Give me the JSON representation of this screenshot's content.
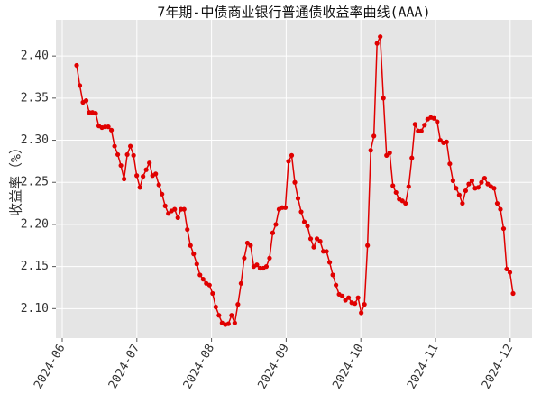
{
  "chart_data": {
    "type": "line",
    "title": "7年期-中债商业银行普通债收益率曲线(AAA)",
    "y_label": "收益率（%）",
    "color": "#e00000",
    "grid": true,
    "ylim": [
      2.065,
      2.443
    ],
    "yticks": [
      {
        "value": 2.1,
        "label": "2.10"
      },
      2.15,
      {
        "value": 2.2,
        "label": "2.20"
      },
      2.25,
      {
        "value": 2.3,
        "label": "2.30"
      },
      2.35,
      {
        "value": 2.4,
        "label": "2.40"
      }
    ],
    "xticks": [
      "2024-06",
      "2024-07",
      "2024-08",
      "2024-09",
      "2024-10",
      "2024-11",
      "2024-12"
    ],
    "values": [
      2.389,
      2.365,
      2.345,
      2.347,
      2.333,
      2.333,
      2.332,
      2.317,
      2.315,
      2.316,
      2.316,
      2.312,
      2.293,
      2.283,
      2.27,
      2.254,
      2.283,
      2.293,
      2.282,
      2.258,
      2.244,
      2.257,
      2.265,
      2.273,
      2.258,
      2.26,
      2.247,
      2.236,
      2.222,
      2.213,
      2.216,
      2.218,
      2.208,
      2.218,
      2.218,
      2.194,
      2.175,
      2.165,
      2.153,
      2.14,
      2.135,
      2.13,
      2.128,
      2.118,
      2.102,
      2.092,
      2.083,
      2.081,
      2.082,
      2.092,
      2.083,
      2.105,
      2.13,
      2.16,
      2.178,
      2.175,
      2.15,
      2.152,
      2.148,
      2.148,
      2.15,
      2.16,
      2.19,
      2.2,
      2.218,
      2.22,
      2.22,
      2.275,
      2.282,
      2.25,
      2.231,
      2.215,
      2.203,
      2.198,
      2.183,
      2.173,
      2.183,
      2.18,
      2.168,
      2.168,
      2.155,
      2.14,
      2.128,
      2.117,
      2.115,
      2.11,
      2.113,
      2.107,
      2.106,
      2.113,
      2.095,
      2.105,
      2.175,
      2.288,
      2.305,
      2.415,
      2.423,
      2.35,
      2.282,
      2.285,
      2.246,
      2.238,
      2.23,
      2.228,
      2.225,
      2.245,
      2.279,
      2.319,
      2.311,
      2.311,
      2.318,
      2.325,
      2.327,
      2.326,
      2.322,
      2.3,
      2.297,
      2.298,
      2.272,
      2.252,
      2.243,
      2.235,
      2.225,
      2.24,
      2.248,
      2.252,
      2.243,
      2.244,
      2.25,
      2.255,
      2.248,
      2.245,
      2.243,
      2.225,
      2.218,
      2.195,
      2.147,
      2.143,
      2.118
    ]
  }
}
